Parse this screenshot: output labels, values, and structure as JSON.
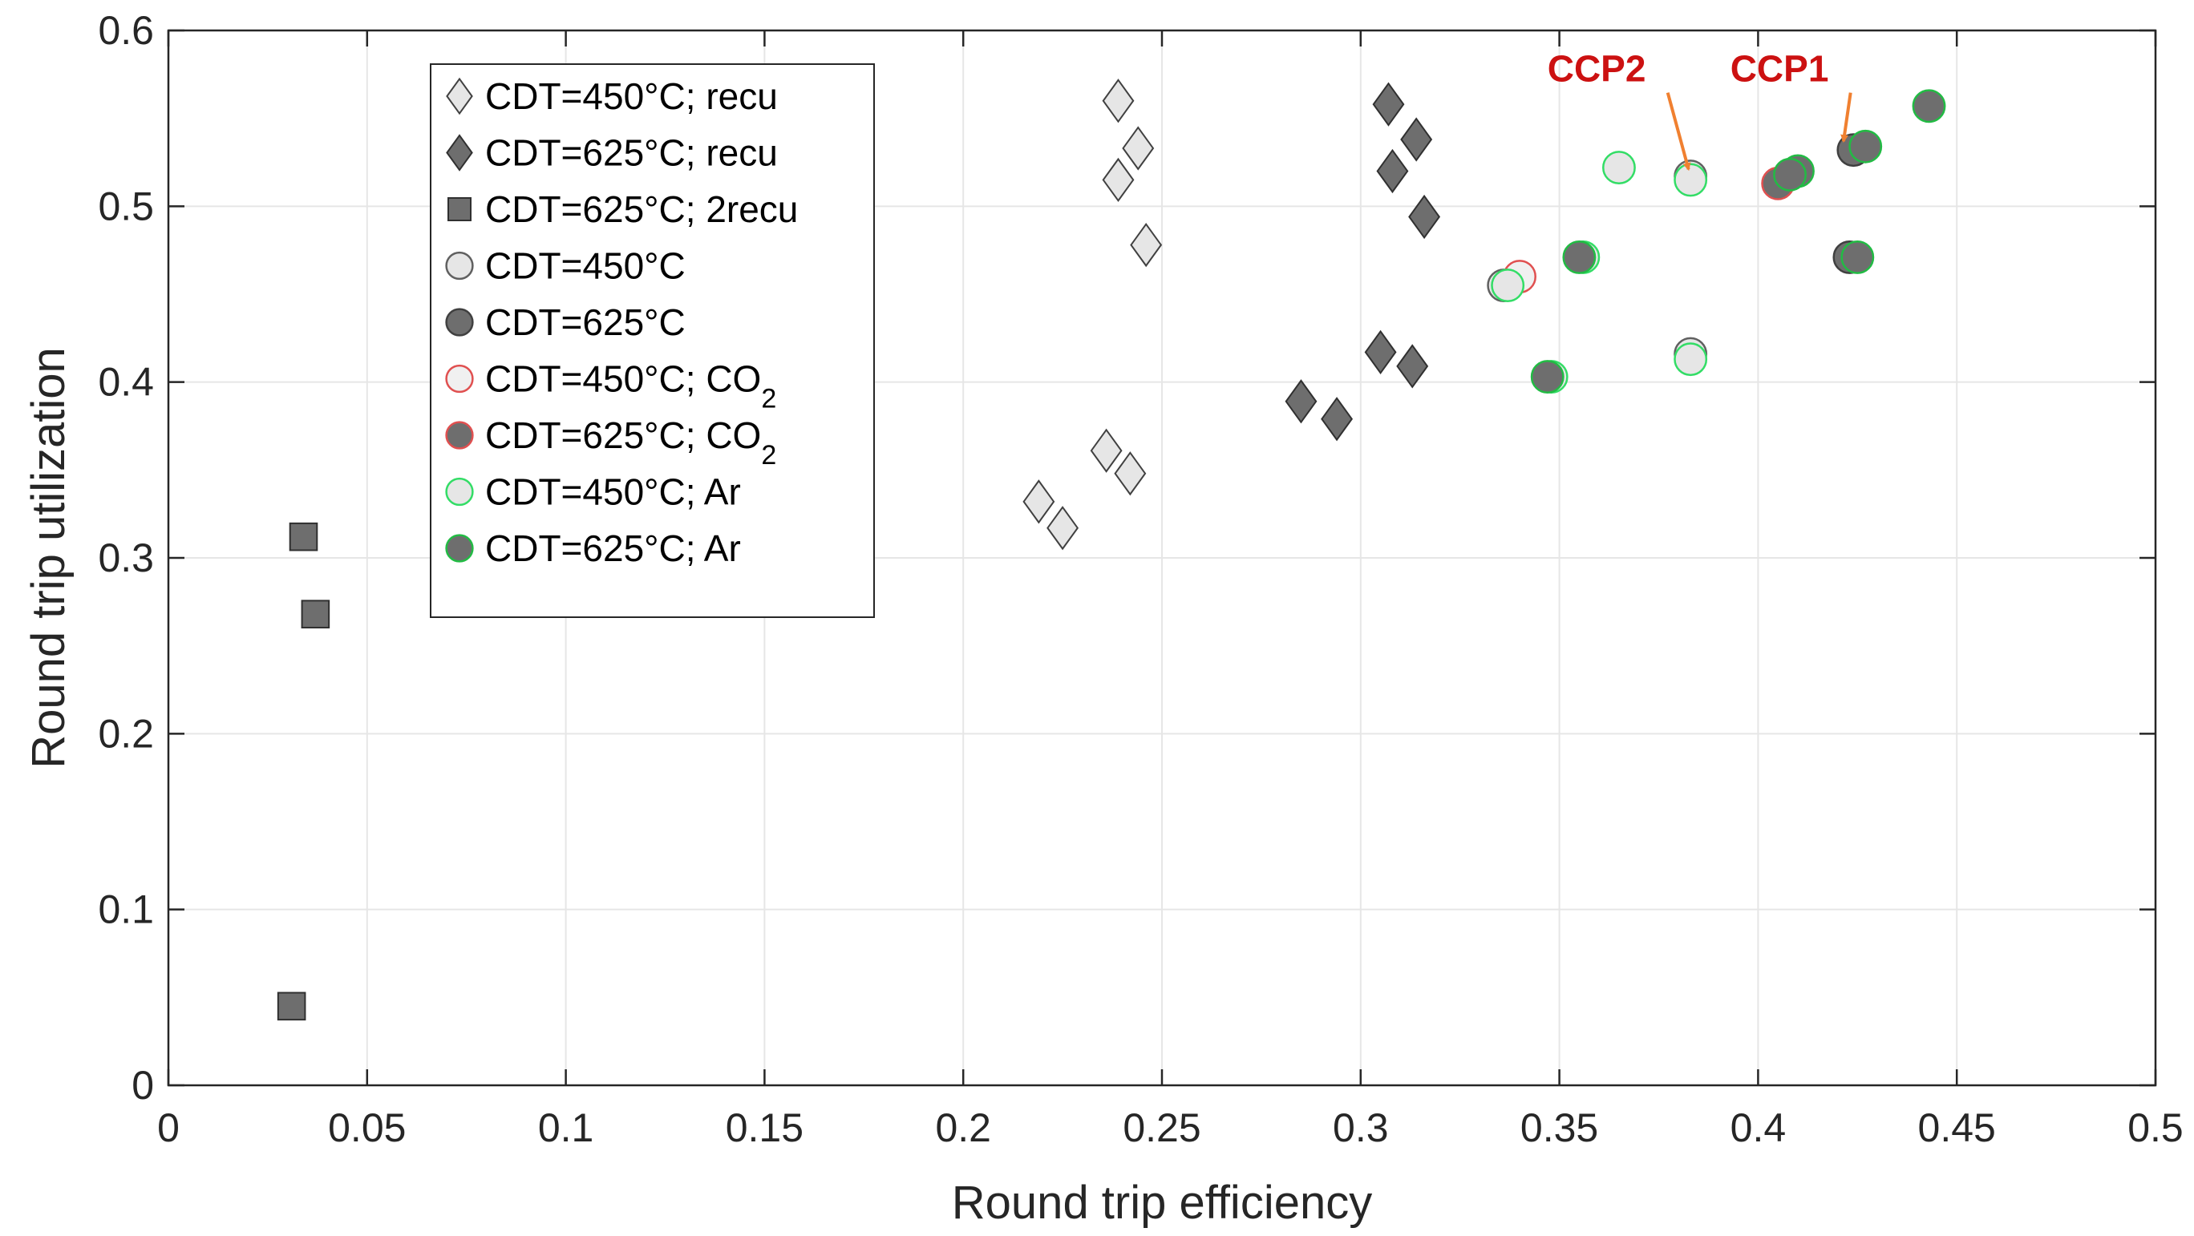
{
  "chart_data": {
    "type": "scatter",
    "xlabel": "Round trip efficiency",
    "ylabel": "Round trip utilization",
    "xlim": [
      0,
      0.5
    ],
    "ylim": [
      0,
      0.6
    ],
    "xticks": [
      "0",
      "0.05",
      "0.1",
      "0.15",
      "0.2",
      "0.25",
      "0.3",
      "0.35",
      "0.4",
      "0.45",
      "0.5"
    ],
    "yticks": [
      "0",
      "0.1",
      "0.2",
      "0.3",
      "0.4",
      "0.5",
      "0.6"
    ],
    "grid": true,
    "legend_position": "top-left",
    "series": [
      {
        "name": "CDT=450°C; recu",
        "label_main": "CDT=450°C; recu",
        "label_sub": "",
        "marker": "diamond",
        "fill": "#e6e6e6",
        "stroke": "#404040",
        "points": [
          [
            0.239,
            0.56
          ],
          [
            0.244,
            0.533
          ],
          [
            0.239,
            0.515
          ],
          [
            0.246,
            0.478
          ],
          [
            0.236,
            0.361
          ],
          [
            0.242,
            0.348
          ],
          [
            0.219,
            0.332
          ],
          [
            0.225,
            0.317
          ]
        ]
      },
      {
        "name": "CDT=625°C; recu",
        "label_main": "CDT=625°C; recu",
        "label_sub": "",
        "marker": "diamond",
        "fill": "#6e6e6e",
        "stroke": "#303030",
        "points": [
          [
            0.307,
            0.558
          ],
          [
            0.314,
            0.538
          ],
          [
            0.308,
            0.52
          ],
          [
            0.316,
            0.494
          ],
          [
            0.305,
            0.417
          ],
          [
            0.313,
            0.409
          ],
          [
            0.285,
            0.389
          ],
          [
            0.294,
            0.379
          ]
        ]
      },
      {
        "name": "CDT=625°C; 2recu",
        "label_main": "CDT=625°C; 2recu",
        "label_sub": "",
        "marker": "square",
        "fill": "#6e6e6e",
        "stroke": "#303030",
        "points": [
          [
            0.034,
            0.312
          ],
          [
            0.037,
            0.268
          ],
          [
            0.031,
            0.045
          ]
        ]
      },
      {
        "name": "CDT=450°C",
        "label_main": "CDT=450°C",
        "label_sub": "",
        "marker": "circle",
        "fill": "#e6e6e6",
        "stroke": "#606060",
        "points": [
          [
            0.383,
            0.517
          ],
          [
            0.383,
            0.416
          ],
          [
            0.336,
            0.455
          ]
        ]
      },
      {
        "name": "CDT=625°C",
        "label_main": "CDT=625°C",
        "label_sub": "",
        "marker": "circle",
        "fill": "#6e6e6e",
        "stroke": "#404040",
        "points": [
          [
            0.424,
            0.532
          ],
          [
            0.423,
            0.471
          ]
        ]
      },
      {
        "name": "CDT=450°C; CO2",
        "label_main": "CDT=450°C; CO",
        "label_sub": "2",
        "marker": "circle",
        "fill": "#f0f0f0",
        "stroke": "#e05050",
        "points": [
          [
            0.34,
            0.46
          ]
        ]
      },
      {
        "name": "CDT=625°C; CO2",
        "label_main": "CDT=625°C; CO",
        "label_sub": "2",
        "marker": "circle",
        "fill": "#6e6e6e",
        "stroke": "#e05050",
        "points": [
          [
            0.405,
            0.513
          ]
        ]
      },
      {
        "name": "CDT=450°C; Ar",
        "label_main": "CDT=450°C; Ar",
        "label_sub": "",
        "marker": "circle",
        "fill": "#e6e6e6",
        "stroke": "#33dd66",
        "points": [
          [
            0.365,
            0.522
          ],
          [
            0.383,
            0.515
          ],
          [
            0.356,
            0.471
          ],
          [
            0.337,
            0.455
          ],
          [
            0.348,
            0.403
          ],
          [
            0.383,
            0.413
          ]
        ]
      },
      {
        "name": "CDT=625°C; Ar",
        "label_main": "CDT=625°C; Ar",
        "label_sub": "",
        "marker": "circle",
        "fill": "#6e6e6e",
        "stroke": "#22bb44",
        "points": [
          [
            0.443,
            0.557
          ],
          [
            0.427,
            0.534
          ],
          [
            0.41,
            0.52
          ],
          [
            0.408,
            0.518
          ],
          [
            0.425,
            0.471
          ],
          [
            0.355,
            0.471
          ],
          [
            0.347,
            0.403
          ]
        ]
      }
    ],
    "annotations": [
      {
        "text": "CCP2",
        "text_x": 0.347,
        "text_y": 0.571,
        "point_x": 0.3825,
        "point_y": 0.521,
        "color": "#cc1111",
        "arrow_color": "#f08030"
      },
      {
        "text": "CCP1",
        "text_x": 0.393,
        "text_y": 0.571,
        "point_x": 0.4215,
        "point_y": 0.537,
        "color": "#cc1111",
        "arrow_color": "#f08030"
      }
    ]
  }
}
